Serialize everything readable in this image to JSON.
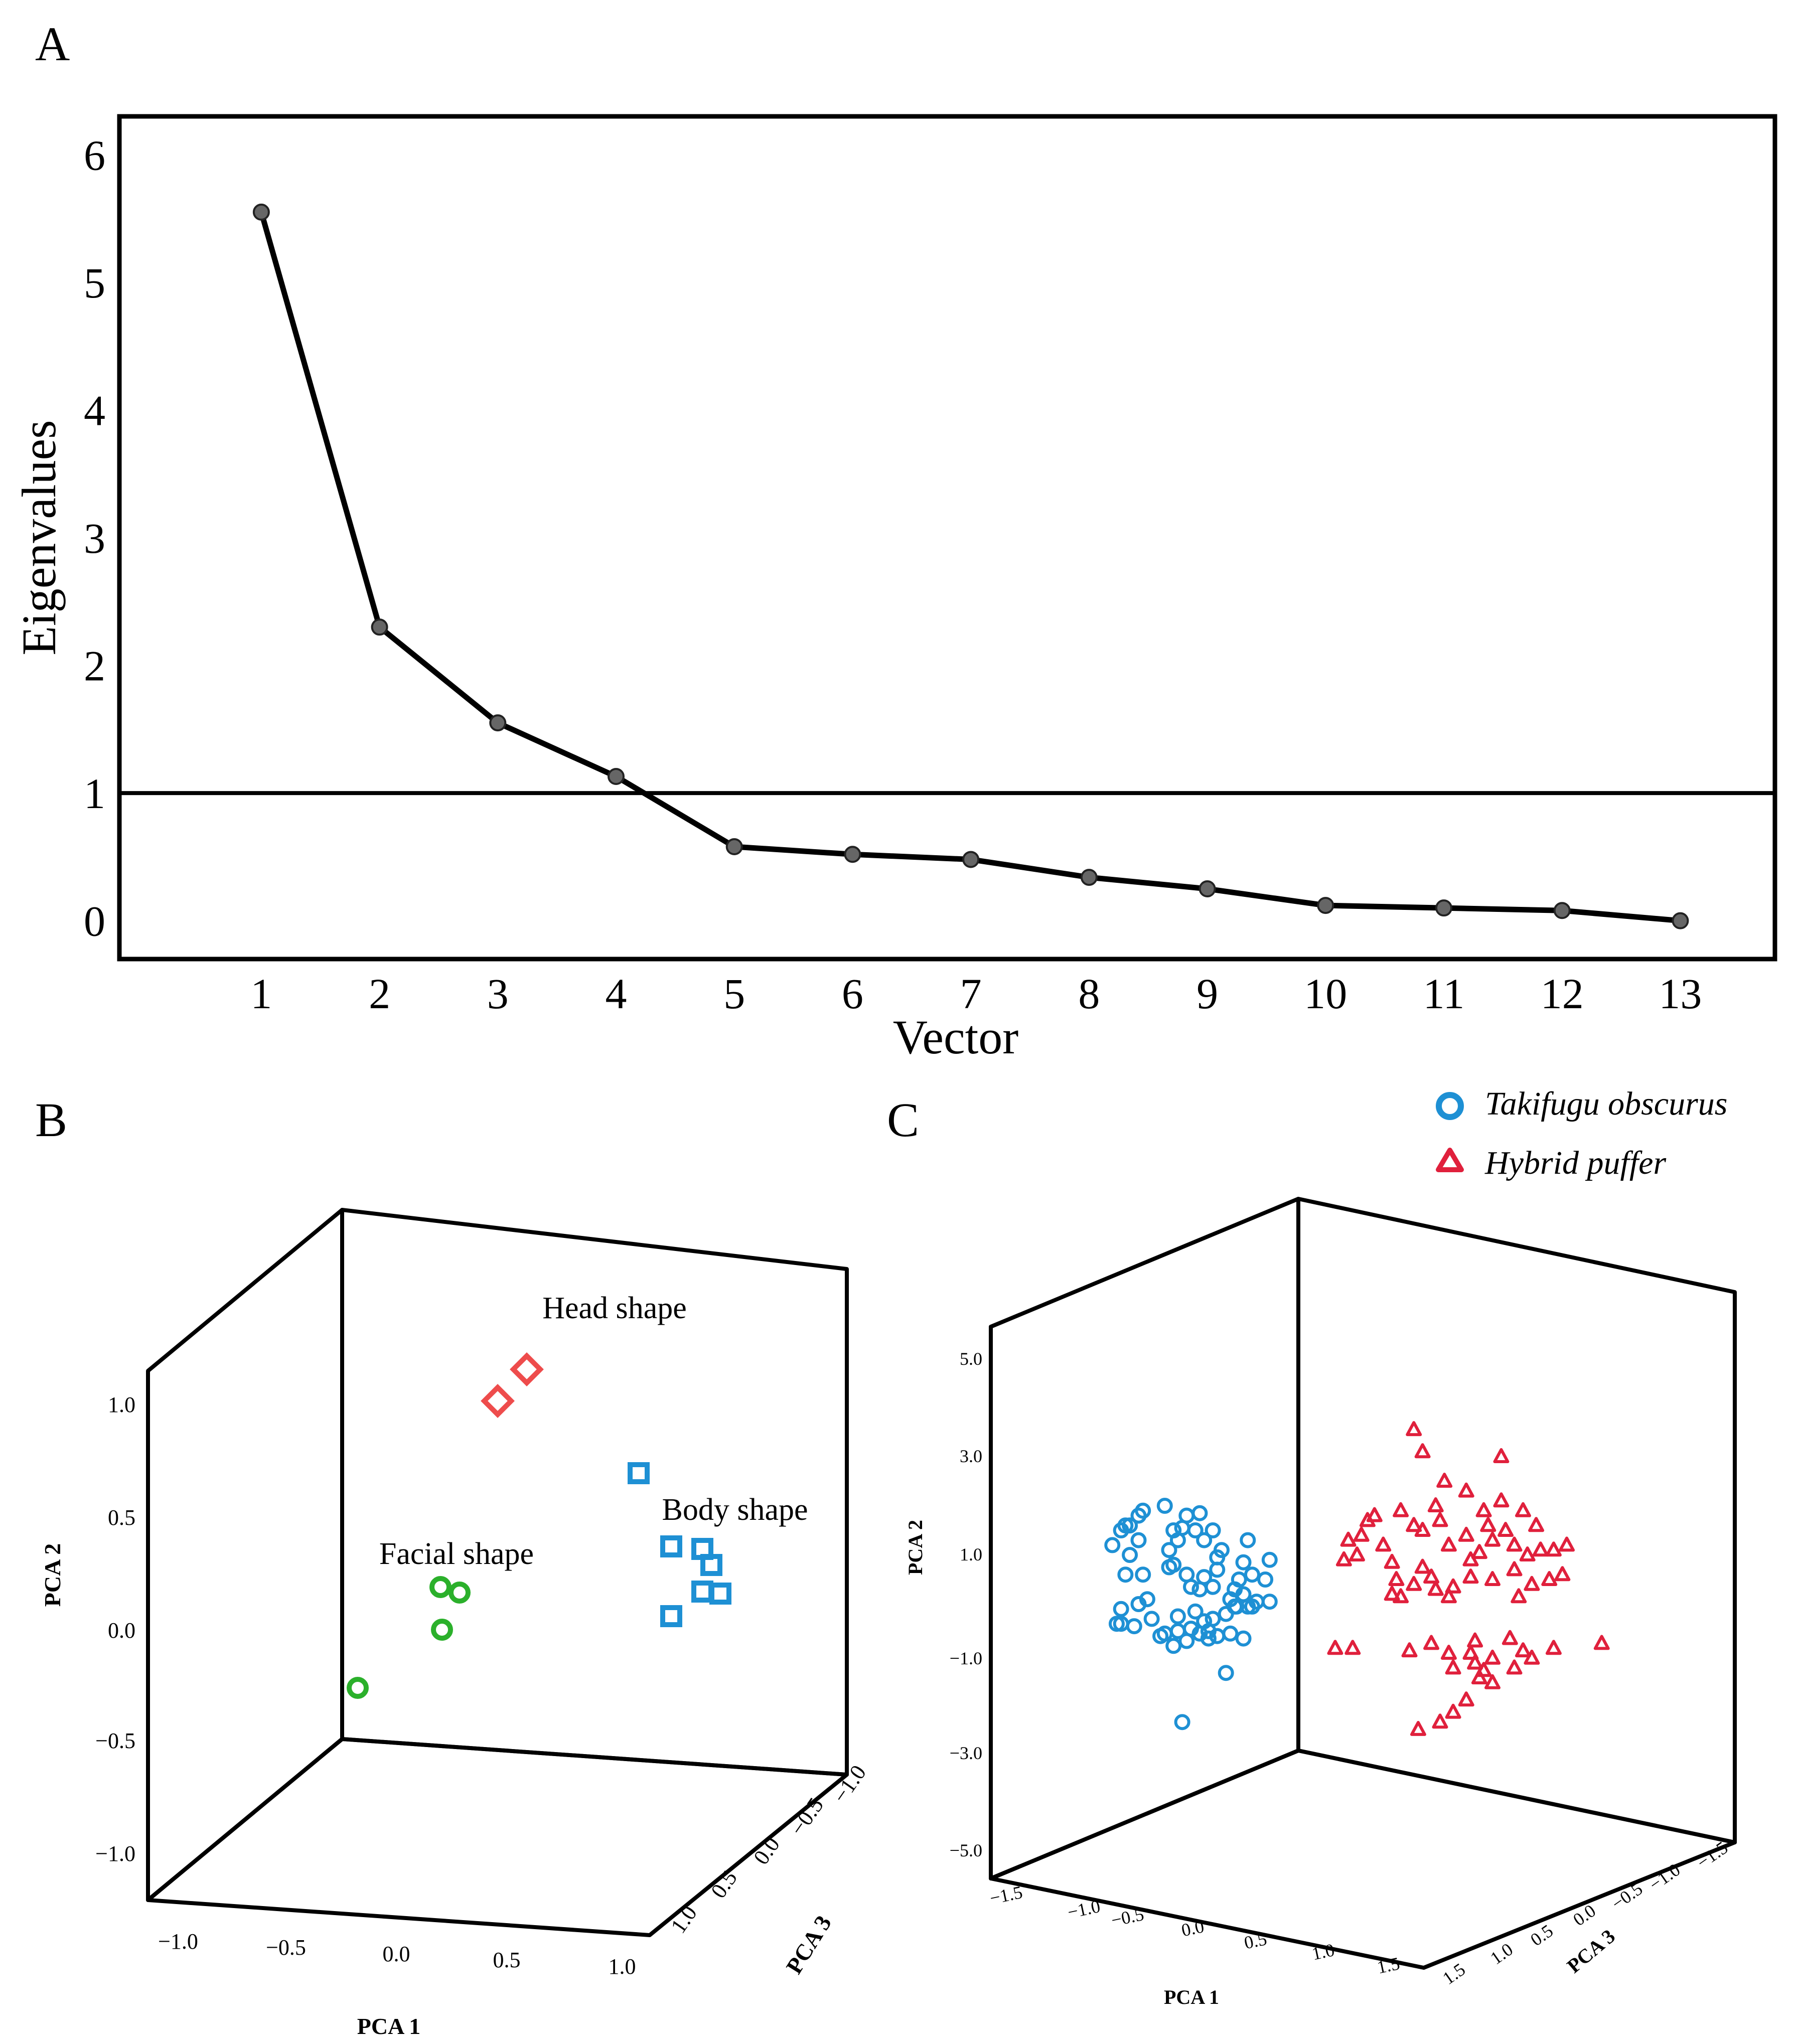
{
  "panels": {
    "a": "A",
    "b": "B",
    "c": "C"
  },
  "chart_data": [
    {
      "id": "A",
      "type": "line",
      "title": "",
      "xlabel": "Vector",
      "ylabel": "Eigenvalues",
      "x": [
        1,
        2,
        3,
        4,
        5,
        6,
        7,
        8,
        9,
        10,
        11,
        12,
        13
      ],
      "values": [
        5.55,
        2.3,
        1.55,
        1.13,
        0.58,
        0.52,
        0.48,
        0.34,
        0.25,
        0.12,
        0.1,
        0.08,
        0.0
      ],
      "xticks": [
        "1",
        "2",
        "3",
        "4",
        "5",
        "6",
        "7",
        "8",
        "9",
        "10",
        "11",
        "12",
        "13"
      ],
      "yticks": [
        "0",
        "1",
        "2",
        "3",
        "4",
        "5",
        "6"
      ],
      "ylim": [
        -0.3,
        6.3
      ],
      "xlim": [
        -0.2,
        13.8
      ],
      "reference_line": 1.0,
      "line_color": "#000000",
      "marker_color": "#666666"
    },
    {
      "id": "B",
      "type": "scatter",
      "projection": "3d",
      "xlabel": "PCA 1",
      "ylabel": "PCA 2",
      "zlabel": "PCA 3",
      "xticks": [
        "−1.0",
        "−0.5",
        "0.0",
        "0.5",
        "1.0"
      ],
      "yticks": [
        "1.0",
        "0.5",
        "0.0",
        "−0.5",
        "−1.0"
      ],
      "zticks": [
        "−1.0",
        "−0.5",
        "0.0",
        "0.5",
        "1.0"
      ],
      "annotations": [
        "Head shape",
        "Body shape",
        "Facial shape"
      ],
      "series": [
        {
          "name": "Head shape",
          "marker": "diamond",
          "color": "#ee4c4c",
          "points": [
            [
              0.05,
              1.05,
              -0.55
            ],
            [
              -0.05,
              0.95,
              -0.5
            ]
          ]
        },
        {
          "name": "Body shape",
          "marker": "square",
          "color": "#1e90d4",
          "points": [
            [
              0.7,
              0.65,
              -0.6
            ],
            [
              0.78,
              0.2,
              -0.4
            ],
            [
              0.82,
              0.3,
              -0.5
            ],
            [
              0.87,
              0.18,
              -0.45
            ],
            [
              0.92,
              0.15,
              -0.35
            ],
            [
              0.72,
              0.05,
              -0.45
            ],
            [
              0.8,
              0.08,
              -0.3
            ]
          ]
        },
        {
          "name": "Facial shape",
          "marker": "circle",
          "color": "#2bb02b",
          "points": [
            [
              -0.1,
              0.2,
              0.1
            ],
            [
              -0.05,
              0.18,
              0.1
            ],
            [
              -0.1,
              0.0,
              0.05
            ],
            [
              -0.45,
              -0.28,
              0.0
            ]
          ]
        }
      ]
    },
    {
      "id": "C",
      "type": "scatter",
      "projection": "3d",
      "xlabel": "PCA 1",
      "ylabel": "PCA 2",
      "zlabel": "PCA 3",
      "xticks": [
        "−1.5",
        "−1.0",
        "−0.5",
        "0.0",
        "0.5",
        "1.0",
        "1.5"
      ],
      "yticks": [
        "5.0",
        "3.0",
        "1.0",
        "−1.0",
        "−3.0",
        "−5.0"
      ],
      "zticks": [
        "−1.5",
        "−1.0",
        "−0.5",
        "0.0",
        "0.5",
        "1.0",
        "1.5"
      ],
      "legend": [
        {
          "label": "Takifugu obscurus",
          "marker": "circle",
          "color": "#1e90d4"
        },
        {
          "label": "Hybrid puffer",
          "marker": "triangle",
          "color": "#e0203c"
        }
      ],
      "series": [
        {
          "name": "Takifugu obscurus",
          "marker": "circle",
          "color": "#1e90d4",
          "points": [
            [
              -1.3,
              1.2
            ],
            [
              -1.2,
              1.5
            ],
            [
              -1.1,
              1.6
            ],
            [
              -1.0,
              1.8
            ],
            [
              -0.95,
              1.9
            ],
            [
              -1.15,
              1.6
            ],
            [
              -1.0,
              1.3
            ],
            [
              -1.1,
              1.0
            ],
            [
              -1.15,
              0.6
            ],
            [
              -0.95,
              0.6
            ],
            [
              -0.7,
              2.0
            ],
            [
              -0.6,
              1.5
            ],
            [
              -0.55,
              1.3
            ],
            [
              -0.45,
              1.8
            ],
            [
              -0.35,
              1.5
            ],
            [
              -0.3,
              1.85
            ],
            [
              -0.25,
              1.3
            ],
            [
              -0.15,
              1.5
            ],
            [
              -0.65,
              1.1
            ],
            [
              -0.6,
              0.8
            ],
            [
              -0.45,
              0.6
            ],
            [
              -0.4,
              0.35
            ],
            [
              -0.3,
              0.3
            ],
            [
              -0.25,
              0.55
            ],
            [
              -0.05,
              1.1
            ],
            [
              -0.1,
              0.7
            ],
            [
              -0.15,
              0.35
            ],
            [
              0.05,
              0.1
            ],
            [
              0.1,
              0.3
            ],
            [
              0.15,
              0.5
            ],
            [
              0.2,
              0.85
            ],
            [
              0.25,
              1.3
            ],
            [
              0.2,
              0.2
            ],
            [
              0.12,
              -0.05
            ],
            [
              0.35,
              0.05
            ],
            [
              0.5,
              0.05
            ],
            [
              0.45,
              0.5
            ],
            [
              0.3,
              -0.05
            ],
            [
              -0.9,
              0.1
            ],
            [
              -1.0,
              0.0
            ],
            [
              -1.2,
              -0.1
            ],
            [
              -1.25,
              -0.4
            ],
            [
              -0.85,
              -0.3
            ],
            [
              -0.7,
              -0.6
            ],
            [
              -0.55,
              -0.55
            ],
            [
              -0.4,
              -0.5
            ],
            [
              -0.3,
              -0.6
            ],
            [
              -0.15,
              -0.3
            ],
            [
              -0.1,
              -0.65
            ],
            [
              0.0,
              -0.2
            ],
            [
              -0.55,
              -0.25
            ],
            [
              -0.35,
              -0.15
            ],
            [
              -0.75,
              -0.65
            ],
            [
              -1.05,
              -0.45
            ],
            [
              0.05,
              -0.6
            ],
            [
              -0.25,
              -0.35
            ],
            [
              0.1,
              -0.05
            ],
            [
              -0.45,
              -0.75
            ],
            [
              -0.6,
              -0.85
            ],
            [
              -0.2,
              -0.7
            ],
            [
              0.0,
              -1.4
            ],
            [
              -0.2,
              -0.55
            ],
            [
              -1.2,
              -0.4
            ],
            [
              -0.5,
              -2.4
            ],
            [
              -0.65,
              0.75
            ],
            [
              -0.1,
              0.95
            ],
            [
              0.25,
              -0.05
            ],
            [
              0.5,
              0.9
            ],
            [
              0.3,
              0.6
            ],
            [
              -0.5,
              1.55
            ],
            [
              0.2,
              -0.7
            ]
          ]
        },
        {
          "name": "Hybrid puffer",
          "marker": "triangle",
          "color": "#e0203c",
          "points": [
            [
              1.35,
              0.9
            ],
            [
              1.4,
              1.3
            ],
            [
              1.55,
              1.4
            ],
            [
              1.62,
              1.7
            ],
            [
              1.7,
              1.8
            ],
            [
              2.0,
              1.9
            ],
            [
              2.15,
              1.6
            ],
            [
              1.8,
              1.2
            ],
            [
              1.9,
              0.85
            ],
            [
              2.25,
              1.5
            ],
            [
              2.4,
              2.0
            ],
            [
              2.55,
              1.2
            ],
            [
              2.5,
              2.5
            ],
            [
              2.45,
              1.7
            ],
            [
              2.75,
              2.3
            ],
            [
              2.95,
              1.9
            ],
            [
              3.0,
              1.6
            ],
            [
              3.15,
              2.1
            ],
            [
              2.75,
              1.4
            ],
            [
              3.05,
              1.3
            ],
            [
              3.2,
              1.5
            ],
            [
              3.3,
              1.2
            ],
            [
              3.45,
              1.0
            ],
            [
              3.6,
              1.1
            ],
            [
              3.75,
              1.1
            ],
            [
              3.3,
              0.7
            ],
            [
              3.05,
              0.5
            ],
            [
              2.8,
              0.9
            ],
            [
              2.4,
              0.3
            ],
            [
              2.55,
              0.15
            ],
            [
              2.15,
              0.4
            ],
            [
              2.25,
              0.75
            ],
            [
              1.95,
              0.5
            ],
            [
              2.0,
              0.15
            ],
            [
              3.15,
              3.0
            ],
            [
              2.15,
              3.55
            ],
            [
              2.25,
              3.1
            ],
            [
              3.4,
              1.9
            ],
            [
              3.55,
              1.6
            ],
            [
              3.9,
              1.2
            ],
            [
              2.9,
              1.05
            ],
            [
              2.6,
              0.35
            ],
            [
              3.5,
              0.4
            ],
            [
              3.85,
              0.6
            ],
            [
              3.7,
              0.5
            ],
            [
              2.35,
              0.55
            ],
            [
              2.8,
              0.55
            ],
            [
              3.35,
              0.15
            ],
            [
              1.5,
              1.0
            ],
            [
              1.9,
              0.2
            ],
            [
              1.25,
              -0.9
            ],
            [
              1.45,
              -0.9
            ],
            [
              2.1,
              -0.95
            ],
            [
              2.55,
              -1.0
            ],
            [
              2.8,
              -1.0
            ],
            [
              2.85,
              -1.2
            ],
            [
              2.9,
              -1.5
            ],
            [
              3.05,
              -1.6
            ],
            [
              2.75,
              -1.95
            ],
            [
              2.6,
              -2.2
            ],
            [
              2.45,
              -2.4
            ],
            [
              2.2,
              -2.55
            ],
            [
              3.3,
              -1.3
            ],
            [
              3.4,
              -0.95
            ],
            [
              3.75,
              -0.9
            ],
            [
              3.05,
              -1.1
            ],
            [
              4.3,
              -0.8
            ],
            [
              3.5,
              -1.1
            ],
            [
              2.95,
              -1.35
            ],
            [
              2.6,
              -1.3
            ],
            [
              2.85,
              -0.75
            ],
            [
              3.25,
              -0.7
            ],
            [
              2.35,
              -0.8
            ]
          ]
        }
      ]
    }
  ]
}
